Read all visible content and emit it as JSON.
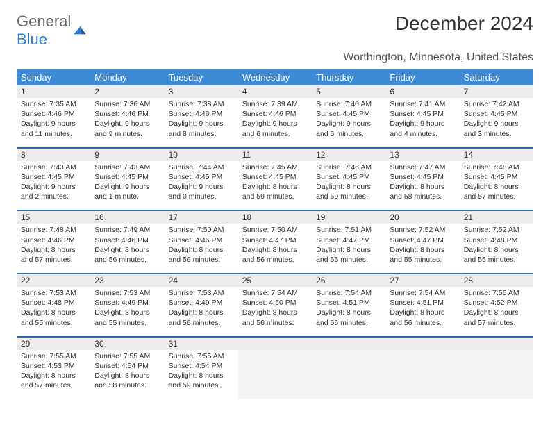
{
  "logo": {
    "word1": "General",
    "word2": "Blue"
  },
  "title": "December 2024",
  "subtitle": "Worthington, Minnesota, United States",
  "colors": {
    "header_bg": "#3d8bd4",
    "header_text": "#ffffff",
    "row_divider": "#2b6db0",
    "daynum_bg": "#ececec",
    "cell_bg": "#ffffff",
    "text": "#333333",
    "logo_blue": "#2b7cd3",
    "logo_gray": "#666666"
  },
  "weekdays": [
    "Sunday",
    "Monday",
    "Tuesday",
    "Wednesday",
    "Thursday",
    "Friday",
    "Saturday"
  ],
  "weeks": [
    [
      {
        "n": "1",
        "sr": "7:35 AM",
        "ss": "4:46 PM",
        "dl": "9 hours and 11 minutes."
      },
      {
        "n": "2",
        "sr": "7:36 AM",
        "ss": "4:46 PM",
        "dl": "9 hours and 9 minutes."
      },
      {
        "n": "3",
        "sr": "7:38 AM",
        "ss": "4:46 PM",
        "dl": "9 hours and 8 minutes."
      },
      {
        "n": "4",
        "sr": "7:39 AM",
        "ss": "4:46 PM",
        "dl": "9 hours and 6 minutes."
      },
      {
        "n": "5",
        "sr": "7:40 AM",
        "ss": "4:45 PM",
        "dl": "9 hours and 5 minutes."
      },
      {
        "n": "6",
        "sr": "7:41 AM",
        "ss": "4:45 PM",
        "dl": "9 hours and 4 minutes."
      },
      {
        "n": "7",
        "sr": "7:42 AM",
        "ss": "4:45 PM",
        "dl": "9 hours and 3 minutes."
      }
    ],
    [
      {
        "n": "8",
        "sr": "7:43 AM",
        "ss": "4:45 PM",
        "dl": "9 hours and 2 minutes."
      },
      {
        "n": "9",
        "sr": "7:43 AM",
        "ss": "4:45 PM",
        "dl": "9 hours and 1 minute."
      },
      {
        "n": "10",
        "sr": "7:44 AM",
        "ss": "4:45 PM",
        "dl": "9 hours and 0 minutes."
      },
      {
        "n": "11",
        "sr": "7:45 AM",
        "ss": "4:45 PM",
        "dl": "8 hours and 59 minutes."
      },
      {
        "n": "12",
        "sr": "7:46 AM",
        "ss": "4:45 PM",
        "dl": "8 hours and 59 minutes."
      },
      {
        "n": "13",
        "sr": "7:47 AM",
        "ss": "4:45 PM",
        "dl": "8 hours and 58 minutes."
      },
      {
        "n": "14",
        "sr": "7:48 AM",
        "ss": "4:45 PM",
        "dl": "8 hours and 57 minutes."
      }
    ],
    [
      {
        "n": "15",
        "sr": "7:48 AM",
        "ss": "4:46 PM",
        "dl": "8 hours and 57 minutes."
      },
      {
        "n": "16",
        "sr": "7:49 AM",
        "ss": "4:46 PM",
        "dl": "8 hours and 56 minutes."
      },
      {
        "n": "17",
        "sr": "7:50 AM",
        "ss": "4:46 PM",
        "dl": "8 hours and 56 minutes."
      },
      {
        "n": "18",
        "sr": "7:50 AM",
        "ss": "4:47 PM",
        "dl": "8 hours and 56 minutes."
      },
      {
        "n": "19",
        "sr": "7:51 AM",
        "ss": "4:47 PM",
        "dl": "8 hours and 55 minutes."
      },
      {
        "n": "20",
        "sr": "7:52 AM",
        "ss": "4:47 PM",
        "dl": "8 hours and 55 minutes."
      },
      {
        "n": "21",
        "sr": "7:52 AM",
        "ss": "4:48 PM",
        "dl": "8 hours and 55 minutes."
      }
    ],
    [
      {
        "n": "22",
        "sr": "7:53 AM",
        "ss": "4:48 PM",
        "dl": "8 hours and 55 minutes."
      },
      {
        "n": "23",
        "sr": "7:53 AM",
        "ss": "4:49 PM",
        "dl": "8 hours and 55 minutes."
      },
      {
        "n": "24",
        "sr": "7:53 AM",
        "ss": "4:49 PM",
        "dl": "8 hours and 56 minutes."
      },
      {
        "n": "25",
        "sr": "7:54 AM",
        "ss": "4:50 PM",
        "dl": "8 hours and 56 minutes."
      },
      {
        "n": "26",
        "sr": "7:54 AM",
        "ss": "4:51 PM",
        "dl": "8 hours and 56 minutes."
      },
      {
        "n": "27",
        "sr": "7:54 AM",
        "ss": "4:51 PM",
        "dl": "8 hours and 56 minutes."
      },
      {
        "n": "28",
        "sr": "7:55 AM",
        "ss": "4:52 PM",
        "dl": "8 hours and 57 minutes."
      }
    ],
    [
      {
        "n": "29",
        "sr": "7:55 AM",
        "ss": "4:53 PM",
        "dl": "8 hours and 57 minutes."
      },
      {
        "n": "30",
        "sr": "7:55 AM",
        "ss": "4:54 PM",
        "dl": "8 hours and 58 minutes."
      },
      {
        "n": "31",
        "sr": "7:55 AM",
        "ss": "4:54 PM",
        "dl": "8 hours and 59 minutes."
      },
      null,
      null,
      null,
      null
    ]
  ],
  "labels": {
    "sunrise": "Sunrise:",
    "sunset": "Sunset:",
    "daylight": "Daylight:"
  }
}
